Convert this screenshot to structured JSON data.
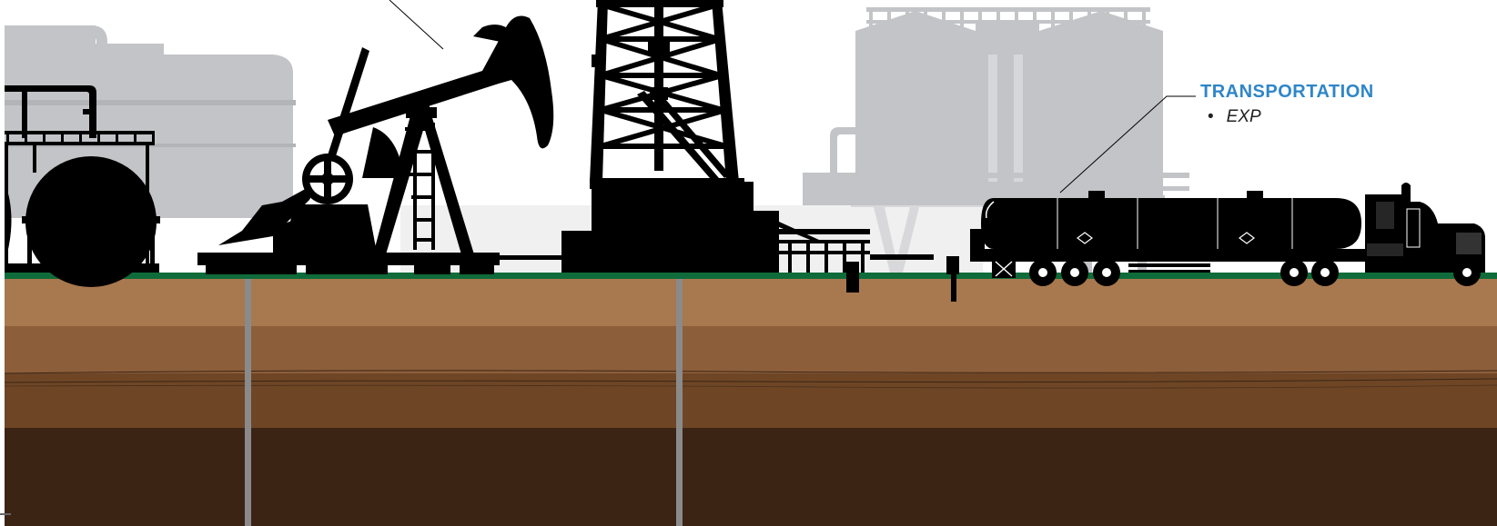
{
  "callout": {
    "title": "TRANSPORTATION",
    "items": [
      "EXP"
    ]
  },
  "colors": {
    "callout_blue": "#2f86c8",
    "background_facility": "#c3c4c7",
    "silhouette": "#000000",
    "grass": "#0f6b3a",
    "topsoil": "#a8784f",
    "soil_mid": "#8c5e3a",
    "soil_deep": "#6e4626",
    "bedrock": "#3c2415",
    "well_pipe": "#8a8a8a"
  },
  "icons": [
    "storage-tank-icon",
    "pumpjack-icon",
    "drilling-rig-icon",
    "tanker-truck-icon",
    "processing-plant-icon"
  ]
}
